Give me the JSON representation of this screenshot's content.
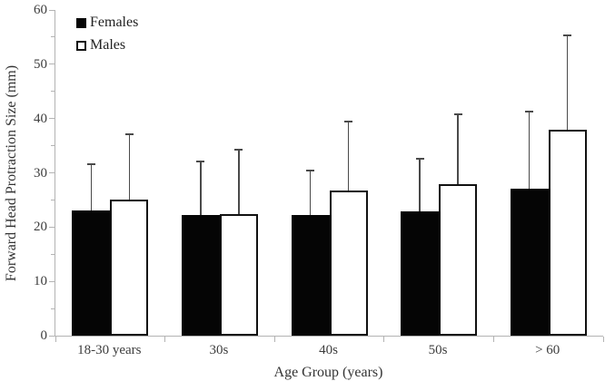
{
  "chart_data": {
    "type": "bar",
    "title": "",
    "xlabel": "Age Group (years)",
    "ylabel": "Forward Head Protraction Size (mm)",
    "categories": [
      "18-30 years",
      "30s",
      "40s",
      "50s",
      "> 60"
    ],
    "series": [
      {
        "name": "Females",
        "style": "filled",
        "fill": "#050505",
        "values": [
          23.1,
          22.2,
          22.2,
          22.9,
          27.0
        ],
        "error_up": [
          8.4,
          9.7,
          8.0,
          9.5,
          14.2
        ]
      },
      {
        "name": "Males",
        "style": "open",
        "fill": "#ffffff",
        "values": [
          25.1,
          22.4,
          26.7,
          27.9,
          38.0
        ],
        "error_up": [
          11.9,
          11.7,
          12.5,
          12.7,
          17.2
        ]
      }
    ],
    "ylim": [
      0,
      60
    ],
    "ytick_step": 10,
    "minor_tick_step": 5,
    "yticks": [
      "0",
      "10",
      "20",
      "30",
      "40",
      "50",
      "60"
    ],
    "legend_position": "top-left-inside",
    "grid": false,
    "colors": {
      "axis": "#b3b3b3",
      "error_bar": "#4a4a4a",
      "tick_text": "#3d3d3d",
      "bar_border": "#111111"
    }
  }
}
